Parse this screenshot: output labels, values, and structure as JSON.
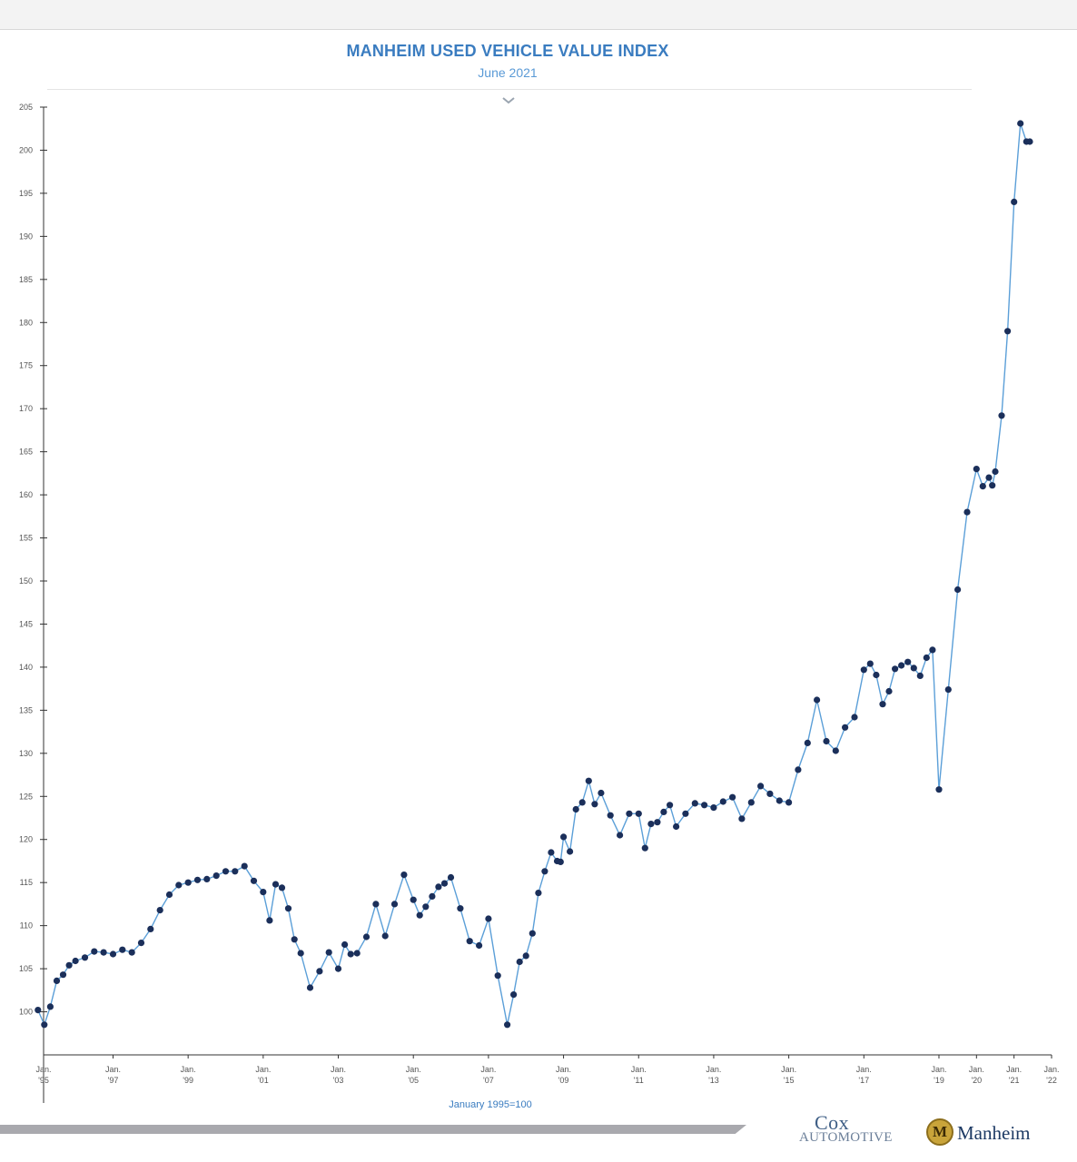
{
  "chart_data": {
    "type": "line",
    "title": "MANHEIM USED VEHICLE VALUE INDEX",
    "subtitle": "June 2021",
    "footnote": "January 1995=100",
    "ylim": [
      95,
      205
    ],
    "y_ticks": [
      100,
      105,
      110,
      115,
      120,
      125,
      130,
      135,
      140,
      145,
      150,
      155,
      160,
      165,
      170,
      175,
      180,
      185,
      190,
      195,
      200,
      205
    ],
    "x_ticks": [
      {
        "year": 1995,
        "line1": "Jan.",
        "line2": "'95"
      },
      {
        "year": 1997,
        "line1": "Jan.",
        "line2": "'97"
      },
      {
        "year": 1999,
        "line1": "Jan.",
        "line2": "'99"
      },
      {
        "year": 2001,
        "line1": "Jan.",
        "line2": "'01"
      },
      {
        "year": 2003,
        "line1": "Jan.",
        "line2": "'03"
      },
      {
        "year": 2005,
        "line1": "Jan.",
        "line2": "'05"
      },
      {
        "year": 2007,
        "line1": "Jan.",
        "line2": "'07"
      },
      {
        "year": 2009,
        "line1": "Jan.",
        "line2": "'09"
      },
      {
        "year": 2011,
        "line1": "Jan.",
        "line2": "'11"
      },
      {
        "year": 2013,
        "line1": "Jan.",
        "line2": "'13"
      },
      {
        "year": 2015,
        "line1": "Jan.",
        "line2": "'15"
      },
      {
        "year": 2017,
        "line1": "Jan.",
        "line2": "'17"
      },
      {
        "year": 2019,
        "line1": "Jan.",
        "line2": "'19"
      },
      {
        "year": 2020,
        "line1": "Jan.",
        "line2": "'20"
      },
      {
        "year": 2021,
        "line1": "Jan.",
        "line2": "'21"
      },
      {
        "year": 2022,
        "line1": "Jan.",
        "line2": "'22"
      }
    ],
    "grid": false,
    "line_color": "#5b9fd8",
    "marker_color": "#1b2f5a",
    "series": [
      {
        "x": [
          1995.0,
          1995.17,
          1995.33,
          1995.5,
          1995.67,
          1995.83,
          1996.0,
          1996.25,
          1996.5,
          1996.75,
          1997.0,
          1997.25,
          1997.5,
          1997.75,
          1998.0,
          1998.25,
          1998.5,
          1998.75,
          1999.0,
          1999.25,
          1999.5,
          1999.75,
          2000.0,
          2000.25,
          2000.5,
          2000.75,
          2001.0,
          2001.17,
          2001.33,
          2001.5,
          2001.67,
          2001.83,
          2002.0,
          2002.25,
          2002.5,
          2002.75,
          2003.0,
          2003.17,
          2003.33,
          2003.5,
          2003.75,
          2004.0,
          2004.25,
          2004.5,
          2004.75,
          2005.0,
          2005.17,
          2005.33,
          2005.5,
          2005.67,
          2005.83,
          2006.0,
          2006.25,
          2006.5,
          2006.75,
          2007.0,
          2007.25,
          2007.5,
          2007.67,
          2007.83,
          2008.0,
          2008.17,
          2008.33,
          2008.5,
          2008.67,
          2008.83,
          2008.92,
          2009.0,
          2009.17,
          2009.33,
          2009.5,
          2009.67,
          2009.83,
          2010.0,
          2010.25,
          2010.5,
          2010.75,
          2011.0,
          2011.17,
          2011.33,
          2011.5,
          2011.67,
          2011.83,
          2012.0,
          2012.25,
          2012.5,
          2012.75,
          2013.0,
          2013.25,
          2013.5,
          2013.75,
          2014.0,
          2014.25,
          2014.5,
          2014.75,
          2015.0,
          2015.25,
          2015.5,
          2015.75,
          2016.0,
          2016.25,
          2016.5,
          2016.75,
          2017.0,
          2017.17,
          2017.33,
          2017.5,
          2017.67,
          2017.83,
          2018.0,
          2018.17,
          2018.33,
          2018.5,
          2018.67,
          2018.83,
          2019.0,
          2019.25,
          2019.5,
          2019.75,
          2020.0,
          2020.17,
          2020.33,
          2020.42,
          2020.5,
          2020.67,
          2020.83,
          2021.0,
          2021.17,
          2021.33,
          2021.42
        ],
        "values": [
          100.2,
          98.5,
          100.6,
          103.6,
          104.3,
          105.4,
          105.9,
          106.3,
          107.0,
          106.9,
          106.7,
          107.2,
          106.9,
          108.0,
          109.6,
          111.8,
          113.6,
          114.7,
          115.0,
          115.3,
          115.4,
          115.8,
          116.3,
          116.3,
          116.9,
          115.2,
          113.9,
          110.6,
          114.8,
          114.4,
          112.0,
          108.4,
          106.8,
          102.8,
          104.7,
          106.9,
          105.0,
          107.8,
          106.7,
          106.8,
          108.7,
          112.5,
          108.8,
          112.5,
          115.9,
          113.0,
          111.2,
          112.2,
          113.4,
          114.5,
          114.9,
          115.6,
          112.0,
          108.2,
          107.7,
          110.8,
          104.2,
          98.5,
          102.0,
          105.8,
          106.5,
          109.1,
          113.8,
          116.3,
          118.5,
          117.5,
          117.4,
          120.3,
          118.6,
          123.5,
          124.3,
          126.8,
          124.1,
          125.4,
          122.8,
          120.5,
          123.0,
          123.0,
          119.0,
          121.8,
          122.0,
          123.2,
          124.0,
          121.5,
          123.0,
          124.2,
          124.0,
          123.7,
          124.4,
          124.9,
          122.4,
          124.3,
          126.2,
          125.3,
          124.5,
          124.3,
          128.1,
          131.2,
          136.2,
          131.4,
          130.3,
          133.0,
          134.2,
          139.7,
          140.4,
          139.1,
          135.7,
          137.2,
          139.8,
          140.2,
          140.6,
          139.9,
          139.0,
          141.1,
          142.0,
          125.8,
          137.4,
          149.0,
          158.0,
          163.0,
          161.0,
          162.0,
          161.1,
          162.7,
          169.2,
          179.0,
          194.0,
          203.1,
          201.0,
          201.0
        ]
      }
    ]
  },
  "logos": {
    "cox_word": "Cox",
    "cox_sub": "AUTOMOTIVE",
    "manheim_emblem": "M",
    "manheim_word": "Manheim"
  },
  "colors": {
    "title": "#3a7cc0",
    "subtitle": "#5a9ad6",
    "axis": "#333333"
  }
}
